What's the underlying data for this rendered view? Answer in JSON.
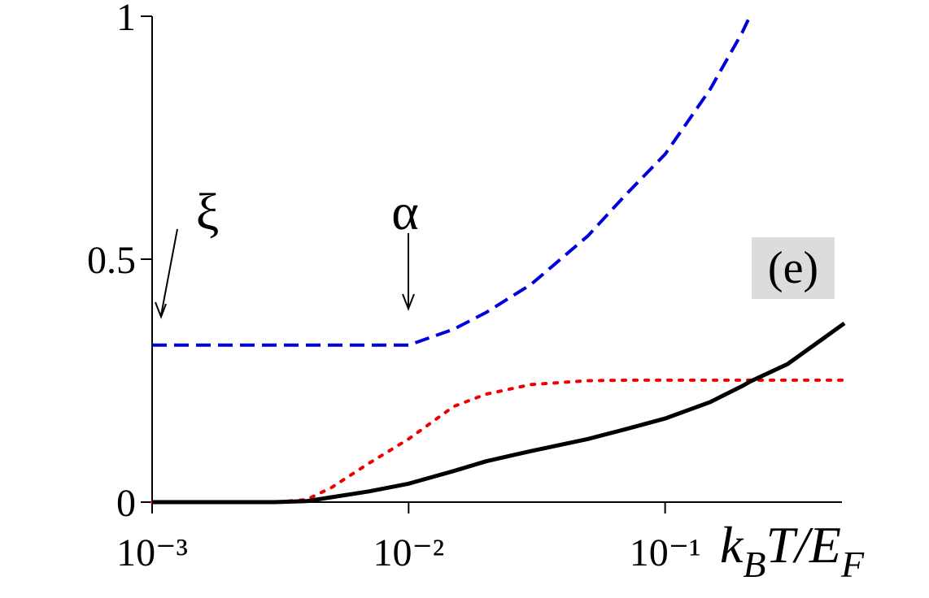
{
  "chart_data": {
    "type": "line",
    "xscale": "log",
    "xlim": [
      0.001,
      0.5
    ],
    "ylim": [
      0,
      1
    ],
    "xticks": [
      {
        "value": 0.001,
        "label": "10⁻³"
      },
      {
        "value": 0.01,
        "label": "10⁻²"
      },
      {
        "value": 0.1,
        "label": "10⁻¹"
      }
    ],
    "yticks": [
      0,
      0.5,
      1
    ],
    "xlabel": [
      "k",
      "B",
      "T/E",
      "F"
    ],
    "x": [
      0.001,
      0.002,
      0.003,
      0.004,
      0.005,
      0.007,
      0.01,
      0.015,
      0.02,
      0.03,
      0.05,
      0.07,
      0.1,
      0.15,
      0.2,
      0.214,
      0.3,
      0.5
    ],
    "series": [
      {
        "color": "#0000dd",
        "style": "dashed",
        "values": [
          0.323,
          0.323,
          0.323,
          0.323,
          0.323,
          0.323,
          0.323,
          0.356,
          0.39,
          0.448,
          0.548,
          0.632,
          0.716,
          0.85,
          0.967,
          1.0,
          null,
          null
        ]
      },
      {
        "color": "#ee0000",
        "style": "dotted",
        "values": [
          0,
          0,
          0,
          0.005,
          0.03,
          0.08,
          0.13,
          0.197,
          0.222,
          0.242,
          0.25,
          0.251,
          0.251,
          0.251,
          0.251,
          0.251,
          0.251,
          0.251
        ]
      },
      {
        "color": "#000000",
        "style": "solid",
        "values": [
          0,
          0,
          0,
          0.002,
          0.01,
          0.022,
          0.038,
          0.064,
          0.084,
          0.105,
          0.13,
          0.15,
          0.172,
          0.206,
          0.239,
          0.248,
          0.284,
          0.368
        ]
      }
    ],
    "annotations": [
      "ξ",
      "α",
      "(e)"
    ]
  }
}
